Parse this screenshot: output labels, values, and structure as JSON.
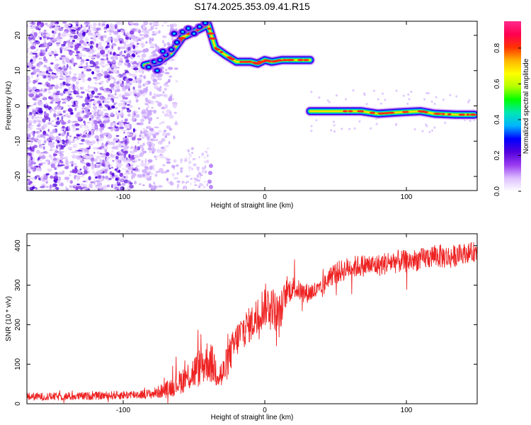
{
  "title": "S174.2025.353.09.41.R15",
  "chart_data": [
    {
      "type": "heatmap",
      "name": "spectrogram",
      "xlabel": "Height of straight line (km)",
      "ylabel": "Frequency (Hz)",
      "xlim": [
        -168,
        150
      ],
      "ylim": [
        -24,
        24
      ],
      "xticks": [
        -100,
        0,
        100
      ],
      "xtick_labels": [
        "-100",
        "0",
        "100"
      ],
      "yticks": [
        20,
        10,
        0,
        -10,
        -20
      ],
      "ytick_labels": [
        "20",
        "10",
        "0",
        "-10",
        "-20"
      ],
      "colorbar": {
        "label": "Normalized spectral amplitude",
        "range": [
          0,
          0.95
        ],
        "ticks": [
          0,
          0.2,
          0.4,
          0.6,
          0.8
        ],
        "tick_labels": [
          "0.0",
          "0.2",
          "0.4",
          "0.6",
          "0.8"
        ],
        "colors": [
          "#ffffff",
          "#ddbfff",
          "#9b3cf0",
          "#5200dc",
          "#0000ff",
          "#00b4ff",
          "#00e6b4",
          "#00ff00",
          "#b4ff00",
          "#ffff00",
          "#ffb400",
          "#ff3200",
          "#ff0050",
          "#ff2a8c"
        ]
      },
      "ridges": [
        {
          "name": "upper-branch",
          "points": [
            [
              -85,
              11.5
            ],
            [
              -75,
              12.5
            ],
            [
              -66,
              15
            ],
            [
              -58,
              19.5
            ],
            [
              -50,
              21
            ],
            [
              -40,
              23
            ],
            [
              -35,
              16.5
            ],
            [
              -28,
              14.5
            ],
            [
              -20,
              12.5
            ],
            [
              -10,
              12.5
            ],
            [
              -5,
              12
            ],
            [
              0,
              13
            ],
            [
              5,
              12.5
            ],
            [
              12,
              13
            ],
            [
              20,
              13
            ],
            [
              32,
              13
            ]
          ]
        },
        {
          "name": "lower-branch",
          "points": [
            [
              32,
              -1.5
            ],
            [
              50,
              -1.5
            ],
            [
              68,
              -1.5
            ],
            [
              80,
              -2.2
            ],
            [
              95,
              -1.8
            ],
            [
              110,
              -1.5
            ],
            [
              120,
              -2.2
            ],
            [
              135,
              -2.5
            ],
            [
              148,
              -2.5
            ]
          ]
        }
      ],
      "noise_region": {
        "x_range": [
          -168,
          -62
        ],
        "y_range": [
          -24,
          24
        ]
      }
    },
    {
      "type": "line",
      "name": "snr",
      "xlabel": "Height of straight line (km)",
      "ylabel": "SNR (10 * v/v)",
      "xlim": [
        -168,
        150
      ],
      "ylim": [
        0,
        430
      ],
      "xticks": [
        -100,
        0,
        100
      ],
      "xtick_labels": [
        "-100",
        "0",
        "100"
      ],
      "yticks": [
        0,
        100,
        200,
        300,
        400
      ],
      "ytick_labels": [
        "0",
        "100",
        "200",
        "300",
        "400"
      ],
      "color": "#ee2222",
      "trend": {
        "x": [
          -168,
          -140,
          -120,
          -100,
          -80,
          -70,
          -60,
          -50,
          -45,
          -40,
          -30,
          -25,
          -20,
          -15,
          -10,
          -5,
          0,
          5,
          10,
          15,
          20,
          25,
          30,
          35,
          40,
          45,
          50,
          60,
          70,
          80,
          90,
          100,
          110,
          120,
          130,
          140,
          150
        ],
        "y": [
          18,
          18,
          20,
          22,
          25,
          35,
          55,
          80,
          95,
          110,
          70,
          120,
          160,
          190,
          200,
          225,
          250,
          250,
          220,
          280,
          295,
          285,
          280,
          285,
          285,
          320,
          330,
          345,
          350,
          350,
          360,
          360,
          365,
          375,
          370,
          380,
          385
        ],
        "jitter": [
          10,
          10,
          10,
          11,
          12,
          20,
          30,
          45,
          50,
          55,
          40,
          45,
          45,
          45,
          45,
          50,
          55,
          50,
          55,
          35,
          28,
          25,
          25,
          25,
          25,
          25,
          28,
          28,
          28,
          28,
          30,
          28,
          28,
          30,
          30,
          25,
          25
        ]
      }
    }
  ]
}
